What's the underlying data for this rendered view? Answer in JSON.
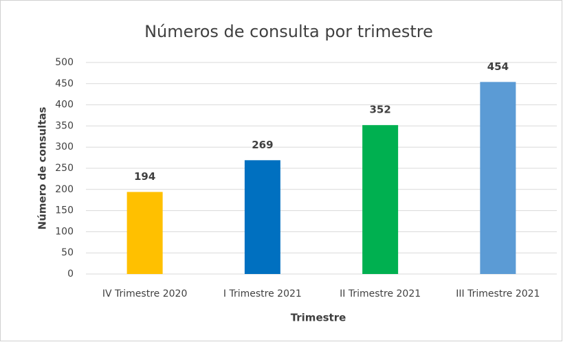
{
  "chart_data": {
    "type": "bar",
    "title": "Números de consulta por trimestre",
    "x_label": "Trimestre",
    "y_label": "Número de consultas",
    "categories": [
      "IV Trimestre 2020",
      "I Trimestre 2021",
      "II Trimestre 2021",
      "III Trimestre 2021"
    ],
    "values": [
      194,
      269,
      352,
      454
    ],
    "colors": [
      "#ffc000",
      "#0070c0",
      "#00b050",
      "#5b9bd5"
    ],
    "ylim": [
      0,
      500
    ],
    "yticks": [
      0,
      50,
      100,
      150,
      200,
      250,
      300,
      350,
      400,
      450,
      500
    ],
    "grid": true
  }
}
